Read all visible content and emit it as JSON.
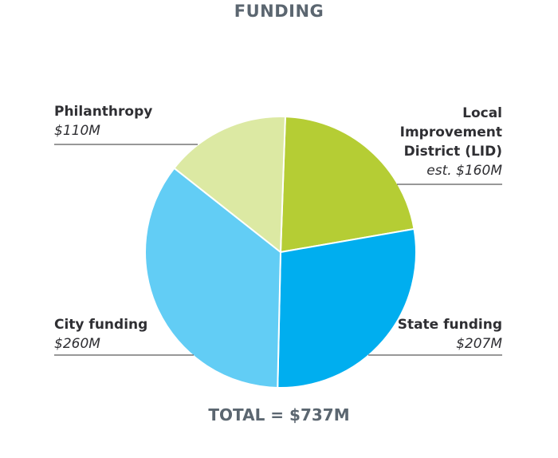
{
  "chart_data": {
    "type": "pie",
    "title": "FUNDING",
    "total_label": "TOTAL = $737M",
    "slices": [
      {
        "name": "Local Improvement District (LID)",
        "name_lines": [
          "Local",
          "Improvement",
          "District (LID)"
        ],
        "value": 160,
        "value_label": "est. $160M",
        "color": "#b5cd34"
      },
      {
        "name": "State funding",
        "name_lines": [
          "State funding"
        ],
        "value": 207,
        "value_label": "$207M",
        "color": "#00aeef"
      },
      {
        "name": "City funding",
        "name_lines": [
          "City funding"
        ],
        "value": 260,
        "value_label": "$260M",
        "color": "#62cdf5"
      },
      {
        "name": "Philanthropy",
        "name_lines": [
          "Philanthropy"
        ],
        "value": 110,
        "value_label": "$110M",
        "color": "#dce9a3"
      }
    ]
  }
}
